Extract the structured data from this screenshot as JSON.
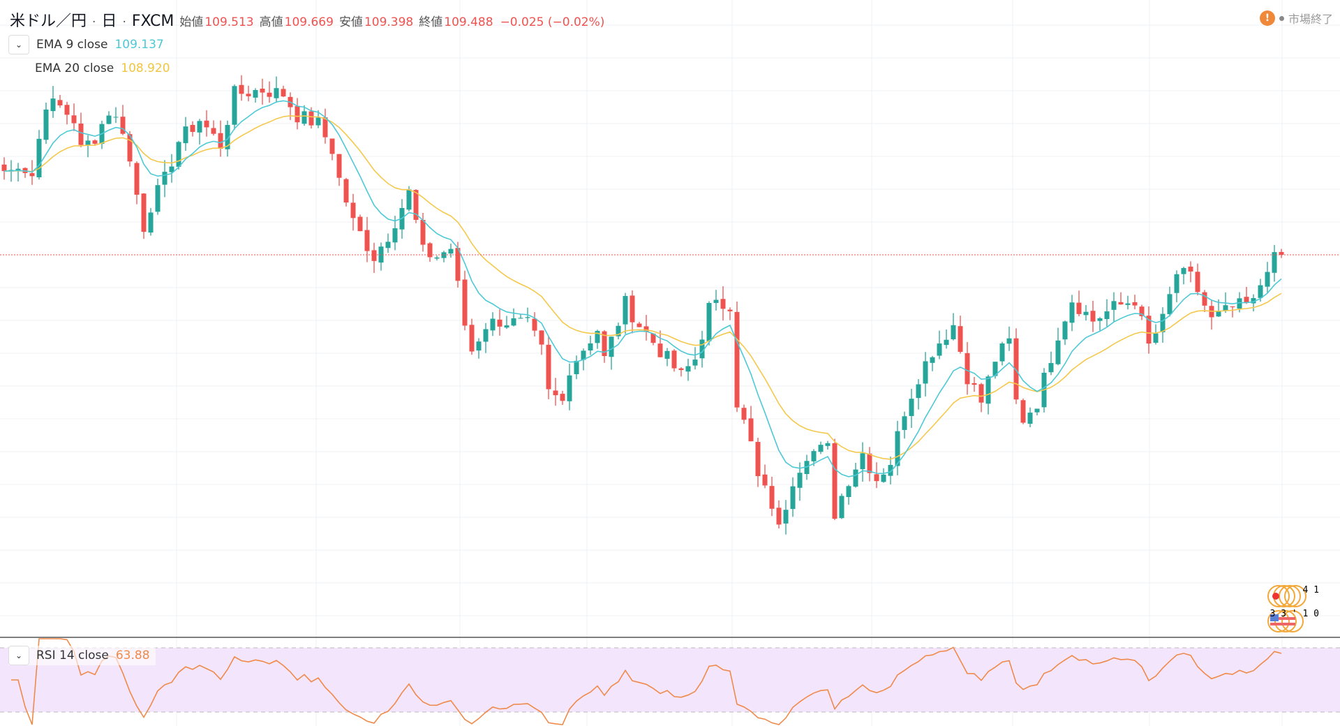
{
  "header": {
    "symbol": "米ドル／円",
    "sep1": "·",
    "interval": "日",
    "sep2": "·",
    "exchange": "FXCM",
    "open_label": "始値",
    "open": "109.513",
    "high_label": "高値",
    "high": "109.669",
    "low_label": "安値",
    "low": "109.398",
    "close_label": "終値",
    "close": "109.488",
    "change": "−0.025 (−0.02%)"
  },
  "status": {
    "warn_icon": "!",
    "text": "市場終了"
  },
  "indicators": {
    "ema9": {
      "label": "EMA 9 close",
      "value": "109.137",
      "color": "#4dc9d6"
    },
    "ema20": {
      "label": "EMA 20 close",
      "value": "108.920",
      "color": "#f5c84c"
    },
    "rsi": {
      "label": "RSI 14 close",
      "value": "63.88",
      "color": "#f08a4b"
    }
  },
  "flags": {
    "jp_text": "4 1",
    "us_text": "3 3 ' 1 0"
  },
  "colors": {
    "up": "#26a69a",
    "down": "#ef5350",
    "grid": "#eef0f3",
    "price_line": "#ef5350",
    "rsi_band": "#f3e5fb"
  },
  "chart_data": {
    "type": "candlestick",
    "title": "米ドル／円 · 日 · FXCM",
    "last_price": 109.488,
    "ylim": [
      103.668,
      113.372
    ],
    "rsi_levels": [
      70,
      30
    ],
    "candle_count": 184,
    "close_waypoints": [
      [
        1,
        110.766
      ],
      [
        2,
        110.896
      ],
      [
        4,
        110.701
      ],
      [
        6,
        111.808
      ],
      [
        8,
        111.743
      ],
      [
        10,
        111.548
      ],
      [
        11,
        111.092
      ],
      [
        13,
        111.287
      ],
      [
        15,
        111.677
      ],
      [
        17,
        111.418
      ],
      [
        18,
        110.896
      ],
      [
        20,
        109.919
      ],
      [
        21,
        110.245
      ],
      [
        23,
        110.636
      ],
      [
        25,
        111.222
      ],
      [
        28,
        111.548
      ],
      [
        31,
        111.16
      ],
      [
        33,
        111.939
      ],
      [
        37,
        112.004
      ],
      [
        40,
        111.939
      ],
      [
        42,
        111.613
      ],
      [
        45,
        111.483
      ],
      [
        47,
        111.092
      ],
      [
        48,
        110.636
      ],
      [
        50,
        109.984
      ],
      [
        53,
        109.463
      ],
      [
        55,
        109.789
      ],
      [
        58,
        110.44
      ],
      [
        60,
        109.528
      ],
      [
        62,
        109.463
      ],
      [
        64,
        109.593
      ],
      [
        66,
        108.421
      ],
      [
        67,
        108.03
      ],
      [
        69,
        108.421
      ],
      [
        71,
        108.486
      ],
      [
        75,
        108.421
      ],
      [
        77,
        108.03
      ],
      [
        78,
        107.378
      ],
      [
        80,
        107.248
      ],
      [
        81,
        107.769
      ],
      [
        85,
        108.355
      ],
      [
        86,
        107.899
      ],
      [
        89,
        108.746
      ],
      [
        91,
        108.421
      ],
      [
        94,
        108.03
      ],
      [
        97,
        107.639
      ],
      [
        99,
        107.899
      ],
      [
        101,
        108.681
      ],
      [
        104,
        108.746
      ],
      [
        105,
        107.248
      ],
      [
        107,
        106.596
      ],
      [
        108,
        106.075
      ],
      [
        110,
        105.685
      ],
      [
        111,
        105.294
      ],
      [
        113,
        106.075
      ],
      [
        115,
        106.466
      ],
      [
        118,
        106.531
      ],
      [
        119,
        105.554
      ],
      [
        121,
        106.075
      ],
      [
        123,
        106.466
      ],
      [
        125,
        106.075
      ],
      [
        127,
        106.336
      ],
      [
        129,
        107.118
      ],
      [
        131,
        107.639
      ],
      [
        133,
        108.03
      ],
      [
        136,
        108.421
      ],
      [
        138,
        107.639
      ],
      [
        140,
        107.248
      ],
      [
        142,
        107.899
      ],
      [
        144,
        108.16
      ],
      [
        145,
        107.248
      ],
      [
        146,
        106.987
      ],
      [
        148,
        107.248
      ],
      [
        151,
        108.29
      ],
      [
        153,
        108.811
      ],
      [
        156,
        108.486
      ],
      [
        159,
        108.681
      ],
      [
        162,
        108.811
      ],
      [
        164,
        108.095
      ],
      [
        166,
        108.486
      ],
      [
        168,
        109.203
      ],
      [
        170,
        109.137
      ],
      [
        171,
        108.942
      ],
      [
        173,
        108.486
      ],
      [
        176,
        108.681
      ],
      [
        179,
        108.746
      ],
      [
        181,
        109.333
      ],
      [
        183,
        109.489
      ]
    ]
  }
}
